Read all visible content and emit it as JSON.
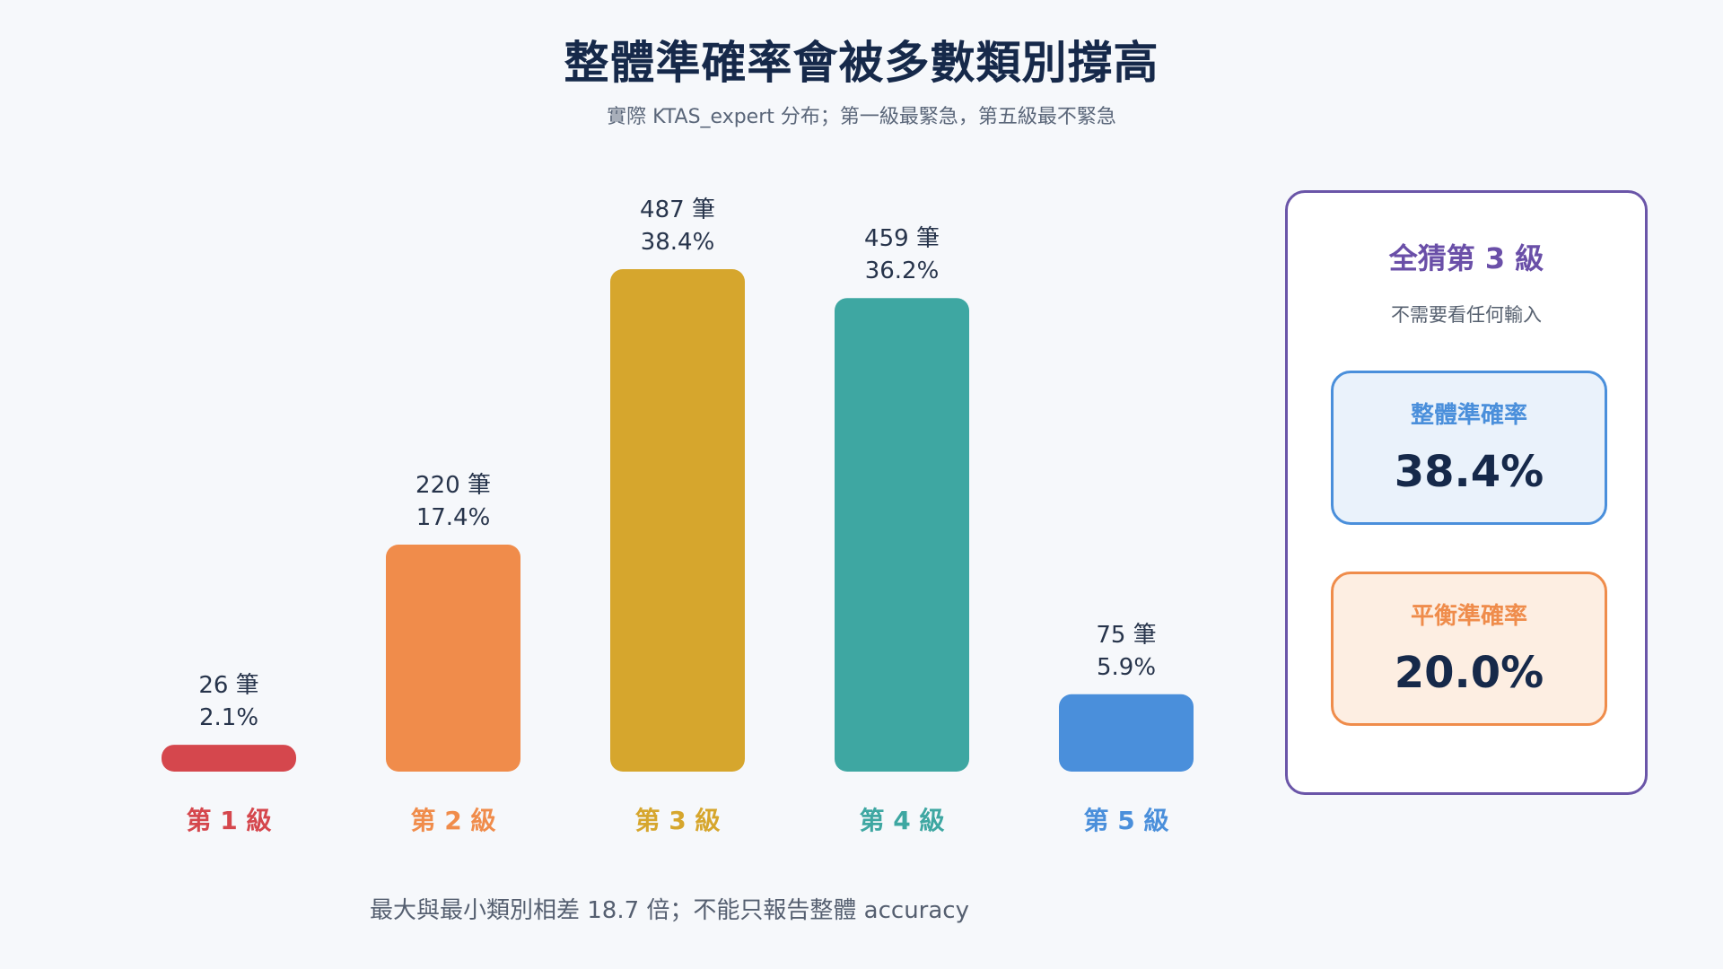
{
  "header": {
    "title": "整體準確率會被多數類別撐高",
    "subtitle": "實際 KTAS_expert 分布；第一級最緊急，第五級最不緊急"
  },
  "chart_data": {
    "type": "bar",
    "title": "整體準確率會被多數類別撐高",
    "subtitle": "實際 KTAS_expert 分布；第一級最緊急，第五級最不緊急",
    "categories": [
      "第 1 級",
      "第 2 級",
      "第 3 級",
      "第 4 級",
      "第 5 級"
    ],
    "values": [
      26,
      220,
      487,
      459,
      75
    ],
    "count_labels": [
      "26 筆",
      "220 筆",
      "487 筆",
      "459 筆",
      "75 筆"
    ],
    "percent_labels": [
      "2.1%",
      "17.4%",
      "38.4%",
      "36.2%",
      "5.9%"
    ],
    "colors": [
      "#d5474d",
      "#f08c4b",
      "#d6a62d",
      "#3ea7a2",
      "#4a8fdb"
    ],
    "xlabel": "",
    "ylabel": "",
    "ylim": [
      0,
      487
    ],
    "grid": false,
    "legend": "none"
  },
  "panel": {
    "title": "全猜第 3 級",
    "note": "不需要看任何輸入",
    "overall": {
      "label": "整體準確率",
      "value": "38.4%",
      "border_color": "#4a8fdb",
      "background_color": "#eaf2fb"
    },
    "balanced": {
      "label": "平衡準確率",
      "value": "20.0%",
      "border_color": "#ef8c4b",
      "background_color": "#fdeee2"
    }
  },
  "footnote": "最大與最小類別相差 18.7 倍；不能只報告整體 accuracy"
}
